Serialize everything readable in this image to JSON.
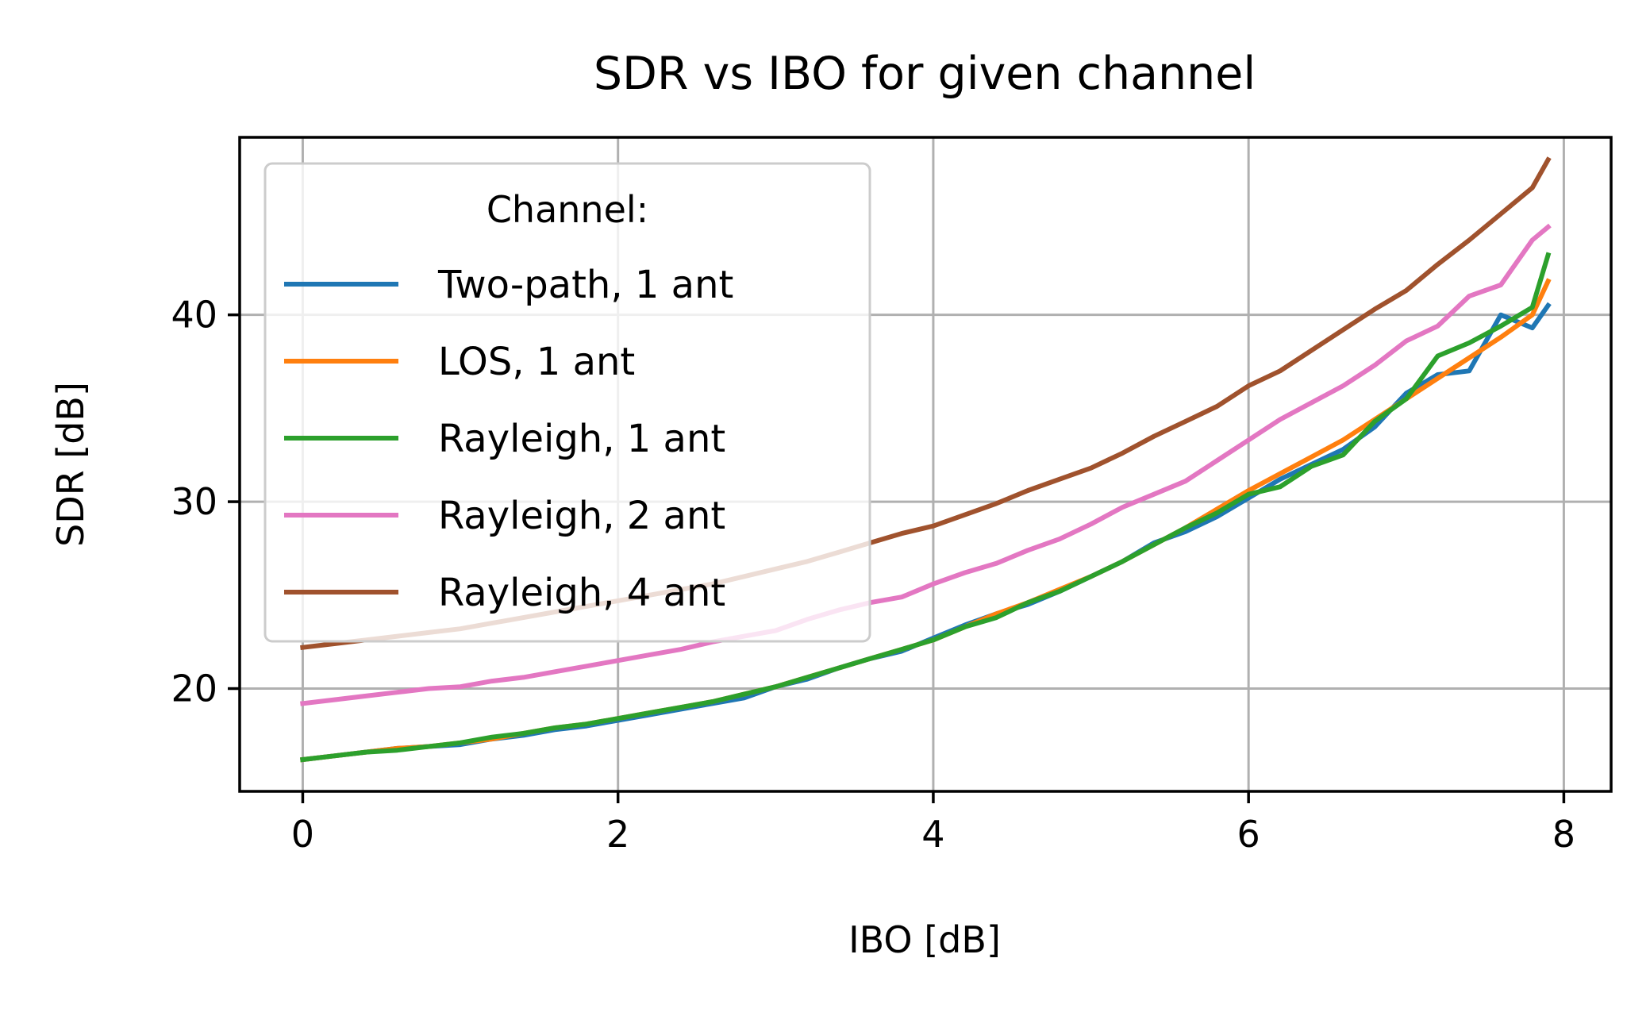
{
  "chart_data": {
    "type": "line",
    "title": "SDR vs IBO for given channel",
    "xlabel": "IBO [dB]",
    "ylabel": "SDR [dB]",
    "xlim": [
      -0.4,
      8.3
    ],
    "ylim": [
      14.5,
      49.5
    ],
    "xticks": [
      0,
      2,
      4,
      6,
      8
    ],
    "yticks": [
      20,
      30,
      40
    ],
    "grid": true,
    "legend": {
      "title": "Channel:",
      "position": "upper-left"
    },
    "x": [
      0.0,
      0.2,
      0.4,
      0.6,
      0.8,
      1.0,
      1.2,
      1.4,
      1.6,
      1.8,
      2.0,
      2.2,
      2.4,
      2.6,
      2.8,
      3.0,
      3.2,
      3.4,
      3.6,
      3.8,
      4.0,
      4.2,
      4.4,
      4.6,
      4.8,
      5.0,
      5.2,
      5.4,
      5.6,
      5.8,
      6.0,
      6.2,
      6.4,
      6.6,
      6.8,
      7.0,
      7.2,
      7.4,
      7.6,
      7.8,
      7.9
    ],
    "series": [
      {
        "name": "Two-path, 1 ant",
        "color": "#1f77b4",
        "values": [
          16.2,
          16.4,
          16.6,
          16.8,
          16.9,
          17.0,
          17.3,
          17.5,
          17.8,
          18.0,
          18.3,
          18.6,
          18.9,
          19.2,
          19.5,
          20.1,
          20.5,
          21.1,
          21.6,
          22.0,
          22.7,
          23.4,
          24.0,
          24.5,
          25.2,
          26.0,
          26.8,
          27.8,
          28.4,
          29.2,
          30.2,
          31.2,
          32.0,
          32.8,
          34.0,
          35.8,
          36.8,
          37.0,
          40.0,
          39.3,
          40.5
        ]
      },
      {
        "name": "LOS, 1 ant",
        "color": "#ff7f0e",
        "values": [
          16.2,
          16.4,
          16.6,
          16.8,
          16.9,
          17.1,
          17.3,
          17.6,
          17.9,
          18.1,
          18.4,
          18.7,
          19.0,
          19.3,
          19.7,
          20.1,
          20.6,
          21.1,
          21.6,
          22.1,
          22.6,
          23.3,
          24.0,
          24.6,
          25.3,
          26.0,
          26.8,
          27.7,
          28.6,
          29.6,
          30.6,
          31.5,
          32.4,
          33.3,
          34.4,
          35.5,
          36.6,
          37.7,
          38.8,
          40.0,
          41.8
        ]
      },
      {
        "name": "Rayleigh, 1 ant",
        "color": "#2ca02c",
        "values": [
          16.2,
          16.4,
          16.6,
          16.7,
          16.9,
          17.1,
          17.4,
          17.6,
          17.9,
          18.1,
          18.4,
          18.7,
          19.0,
          19.3,
          19.7,
          20.1,
          20.6,
          21.1,
          21.6,
          22.1,
          22.6,
          23.3,
          23.8,
          24.6,
          25.2,
          26.0,
          26.8,
          27.7,
          28.6,
          29.4,
          30.4,
          30.8,
          31.9,
          32.5,
          34.3,
          35.5,
          37.8,
          38.5,
          39.4,
          40.4,
          43.2
        ]
      },
      {
        "name": "Rayleigh, 2 ant",
        "color": "#e377c2",
        "values": [
          19.2,
          19.4,
          19.6,
          19.8,
          20.0,
          20.1,
          20.4,
          20.6,
          20.9,
          21.2,
          21.5,
          21.8,
          22.1,
          22.5,
          22.8,
          23.1,
          23.7,
          24.2,
          24.6,
          24.9,
          25.6,
          26.2,
          26.7,
          27.4,
          28.0,
          28.8,
          29.7,
          30.4,
          31.1,
          32.2,
          33.3,
          34.4,
          35.3,
          36.2,
          37.3,
          38.6,
          39.4,
          41.0,
          41.6,
          44.0,
          44.7
        ]
      },
      {
        "name": "Rayleigh, 4 ant",
        "color": "#a0522d",
        "values": [
          22.2,
          22.4,
          22.6,
          22.8,
          23.0,
          23.2,
          23.5,
          23.8,
          24.1,
          24.4,
          24.7,
          25.0,
          25.3,
          25.6,
          26.0,
          26.4,
          26.8,
          27.3,
          27.8,
          28.3,
          28.7,
          29.3,
          29.9,
          30.6,
          31.2,
          31.8,
          32.6,
          33.5,
          34.3,
          35.1,
          36.2,
          37.0,
          38.1,
          39.2,
          40.3,
          41.3,
          42.7,
          44.0,
          45.4,
          46.8,
          48.3
        ]
      }
    ]
  }
}
